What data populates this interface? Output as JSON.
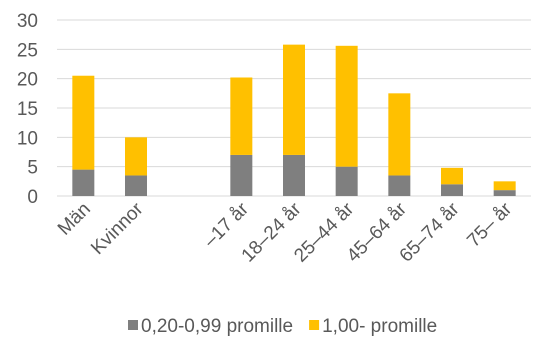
{
  "chart_data": {
    "type": "bar",
    "stacked": true,
    "categories": [
      "Män",
      "Kvinnor",
      "",
      "–17 år",
      "18–24 år",
      "25–44 år",
      "45–64 år",
      "65–74 år",
      "75– år"
    ],
    "series": [
      {
        "name": "0,20-0,99 promille",
        "color": "#7f7f7f",
        "values": [
          4.5,
          3.5,
          null,
          7,
          7,
          5,
          3.5,
          2,
          1
        ]
      },
      {
        "name": "1,00- promille",
        "color": "#ffc000",
        "values": [
          16,
          6.5,
          null,
          13.2,
          18.8,
          20.6,
          14,
          2.8,
          1.5
        ]
      }
    ],
    "ylim": [
      0,
      30
    ],
    "yticks": [
      "0",
      "5",
      "10",
      "15",
      "20",
      "25",
      "30"
    ],
    "grid": true,
    "legend": "bottom"
  }
}
